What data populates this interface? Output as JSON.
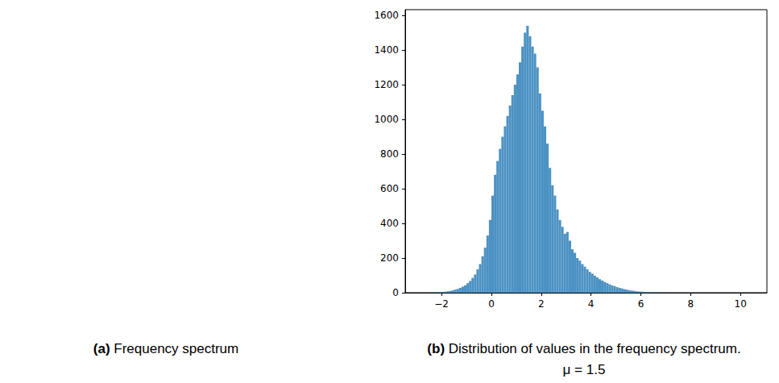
{
  "image_panel": {
    "panel_label": "(a)",
    "caption": "Frequency spectrum"
  },
  "chart_data": {
    "type": "histogram",
    "panel_label": "(b)",
    "title": "Distribution of values in the frequency spectrum. μ = 1.5",
    "color": "#4c92c3",
    "grid": false,
    "bins": [
      -2.6,
      -2.5,
      -2.4,
      -2.3,
      -2.2,
      -2.1,
      -2.0,
      -1.9,
      -1.8,
      -1.7,
      -1.6,
      -1.5,
      -1.4,
      -1.3,
      -1.2,
      -1.1,
      -1.0,
      -0.9,
      -0.8,
      -0.7,
      -0.6,
      -0.5,
      -0.4,
      -0.3,
      -0.2,
      -0.1,
      0.0,
      0.1,
      0.2,
      0.3,
      0.4,
      0.5,
      0.6,
      0.7,
      0.8,
      0.9,
      1.0,
      1.1,
      1.2,
      1.3,
      1.4,
      1.5,
      1.6,
      1.7,
      1.8,
      1.9,
      2.0,
      2.1,
      2.2,
      2.3,
      2.4,
      2.5,
      2.6,
      2.7,
      2.8,
      2.9,
      3.0,
      3.1,
      3.2,
      3.3,
      3.4,
      3.5,
      3.6,
      3.7,
      3.8,
      3.9,
      4.0,
      4.1,
      4.2,
      4.3,
      4.4,
      4.5,
      4.6,
      4.7,
      4.8,
      4.9,
      5.0,
      5.1,
      5.2,
      5.3,
      5.4,
      5.5,
      5.6,
      5.7,
      5.8,
      5.9,
      6.0,
      6.1,
      6.2,
      6.3,
      6.4,
      6.5,
      6.6,
      6.7,
      6.8,
      6.9,
      7.0,
      7.1,
      7.2,
      7.3,
      7.4,
      7.5,
      7.6,
      7.7,
      7.8,
      7.9,
      8.0,
      8.1,
      8.2,
      8.3,
      8.4,
      8.5,
      8.6,
      8.7,
      8.8,
      8.9,
      9.0,
      9.1,
      9.2,
      9.3,
      9.4,
      9.5,
      9.6,
      9.7,
      9.8,
      9.9,
      10.0,
      10.1,
      10.2,
      10.3,
      10.4
    ],
    "values": [
      0,
      2,
      0,
      3,
      2,
      5,
      4,
      6,
      8,
      10,
      14,
      18,
      22,
      28,
      35,
      42,
      55,
      68,
      85,
      105,
      135,
      165,
      210,
      260,
      330,
      420,
      560,
      680,
      760,
      830,
      900,
      960,
      1020,
      1080,
      1140,
      1200,
      1260,
      1330,
      1420,
      1500,
      1540,
      1480,
      1420,
      1380,
      1300,
      1150,
      1050,
      960,
      860,
      720,
      620,
      560,
      480,
      420,
      380,
      340,
      350,
      300,
      250,
      230,
      200,
      185,
      165,
      150,
      135,
      120,
      110,
      98,
      88,
      78,
      70,
      62,
      55,
      48,
      42,
      38,
      32,
      28,
      24,
      20,
      17,
      14,
      12,
      10,
      8,
      7,
      6,
      5,
      4,
      3,
      3,
      2,
      2,
      1,
      1,
      1,
      1,
      0,
      0,
      0,
      0,
      0,
      0,
      0,
      0,
      0,
      0,
      1,
      0,
      0,
      0,
      0,
      0,
      0,
      0,
      0,
      0,
      0,
      0,
      0,
      0,
      0,
      0,
      0,
      0,
      0,
      0,
      0,
      0,
      1
    ],
    "xlim": [
      -3.46,
      11.06
    ],
    "ylim": [
      0,
      1633
    ],
    "xticks": [
      {
        "value": -2,
        "label": "−2"
      },
      0,
      2,
      4,
      6,
      8,
      10
    ],
    "yticks": [
      0,
      200,
      400,
      600,
      800,
      1000,
      1200,
      1400,
      1600
    ]
  }
}
